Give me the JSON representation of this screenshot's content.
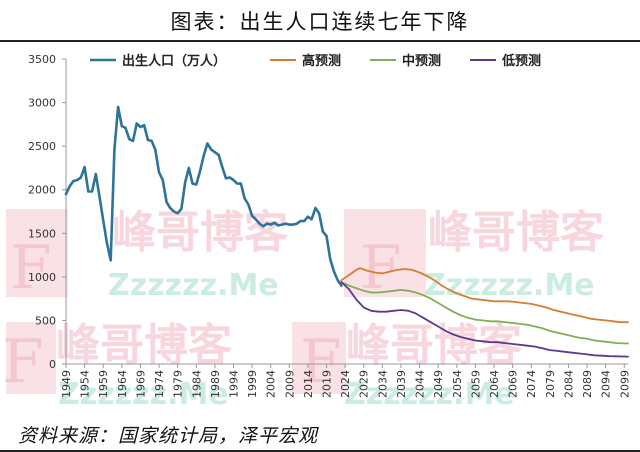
{
  "header": {
    "title": "图表：出生人口连续七年下降"
  },
  "footer": {
    "source": "资料来源：国家统计局，泽平宏观"
  },
  "watermarks": {
    "cn": "峰哥博客",
    "en": "Zzzzzz.Me",
    "letter": "F"
  },
  "colors": {
    "actual": "#2e7398",
    "high": "#d67d31",
    "mid": "#83ad55",
    "low": "#5c3a8e",
    "watermark_pink": "#f6c9d2",
    "watermark_green": "#bfe9d8"
  },
  "chart_data": {
    "type": "line",
    "title": "",
    "xlabel": "",
    "ylabel": "",
    "ylim": [
      0,
      3500
    ],
    "yticks": [
      0,
      500,
      1000,
      1500,
      2000,
      2500,
      3000,
      3500
    ],
    "xlim": [
      1949,
      2100
    ],
    "xtick_labels": [
      "1949",
      "1954",
      "1959",
      "1964",
      "1969",
      "1974",
      "1979",
      "1984",
      "1989",
      "1994",
      "1999",
      "2004",
      "2009",
      "2014",
      "2019",
      "2024",
      "2029",
      "2034",
      "2039",
      "2044",
      "2049",
      "2054",
      "2059",
      "2064",
      "2069",
      "2074",
      "2079",
      "2084",
      "2089",
      "2094",
      "2099"
    ],
    "legend": "top",
    "grid": false,
    "series": [
      {
        "name": "出生人口（万人）",
        "color_key": "actual",
        "x": [
          1949,
          1950,
          1951,
          1952,
          1953,
          1954,
          1955,
          1956,
          1957,
          1958,
          1959,
          1960,
          1961,
          1962,
          1963,
          1964,
          1965,
          1966,
          1967,
          1968,
          1969,
          1970,
          1971,
          1972,
          1973,
          1974,
          1975,
          1976,
          1977,
          1978,
          1979,
          1980,
          1981,
          1982,
          1983,
          1984,
          1985,
          1986,
          1987,
          1988,
          1989,
          1990,
          1991,
          1992,
          1993,
          1994,
          1995,
          1996,
          1997,
          1998,
          1999,
          2000,
          2001,
          2002,
          2003,
          2004,
          2005,
          2006,
          2007,
          2008,
          2009,
          2010,
          2011,
          2012,
          2013,
          2014,
          2015,
          2016,
          2017,
          2018,
          2019,
          2020,
          2021,
          2022,
          2023
        ],
        "values": [
          1950,
          2040,
          2100,
          2110,
          2140,
          2260,
          1980,
          1980,
          2180,
          1920,
          1650,
          1390,
          1190,
          2460,
          2950,
          2730,
          2710,
          2580,
          2560,
          2760,
          2720,
          2740,
          2570,
          2560,
          2460,
          2200,
          2110,
          1860,
          1790,
          1750,
          1730,
          1780,
          2080,
          2250,
          2070,
          2060,
          2210,
          2390,
          2530,
          2460,
          2430,
          2400,
          2260,
          2130,
          2140,
          2110,
          2070,
          2070,
          1900,
          1830,
          1700,
          1660,
          1610,
          1580,
          1610,
          1600,
          1620,
          1590,
          1600,
          1610,
          1600,
          1600,
          1610,
          1640,
          1640,
          1690,
          1660,
          1790,
          1730,
          1520,
          1470,
          1200,
          1060,
          960,
          900
        ]
      },
      {
        "name": "高预测",
        "color_key": "high",
        "x": [
          2023,
          2025,
          2027,
          2028,
          2030,
          2032,
          2034,
          2036,
          2038,
          2040,
          2042,
          2044,
          2046,
          2048,
          2050,
          2052,
          2054,
          2056,
          2058,
          2060,
          2062,
          2064,
          2066,
          2068,
          2070,
          2072,
          2074,
          2076,
          2078,
          2080,
          2082,
          2084,
          2086,
          2088,
          2090,
          2092,
          2094,
          2096,
          2098,
          2100
        ],
        "values": [
          960,
          1020,
          1080,
          1100,
          1070,
          1050,
          1040,
          1060,
          1080,
          1090,
          1080,
          1050,
          1010,
          960,
          900,
          850,
          810,
          780,
          750,
          740,
          730,
          720,
          720,
          720,
          710,
          700,
          690,
          670,
          650,
          620,
          600,
          580,
          560,
          540,
          520,
          510,
          500,
          490,
          480,
          480
        ]
      },
      {
        "name": "中预测",
        "color_key": "mid",
        "x": [
          2023,
          2025,
          2027,
          2029,
          2031,
          2033,
          2035,
          2037,
          2039,
          2041,
          2043,
          2045,
          2047,
          2049,
          2051,
          2053,
          2055,
          2057,
          2059,
          2061,
          2063,
          2065,
          2067,
          2069,
          2071,
          2073,
          2075,
          2077,
          2079,
          2081,
          2083,
          2085,
          2087,
          2089,
          2091,
          2093,
          2095,
          2097,
          2100
        ],
        "values": [
          940,
          900,
          870,
          840,
          820,
          820,
          830,
          840,
          850,
          840,
          820,
          790,
          750,
          700,
          650,
          600,
          560,
          530,
          510,
          500,
          490,
          490,
          480,
          470,
          460,
          450,
          430,
          410,
          380,
          360,
          340,
          320,
          300,
          290,
          270,
          260,
          250,
          240,
          235
        ]
      },
      {
        "name": "低预测",
        "color_key": "low",
        "x": [
          2023,
          2025,
          2027,
          2029,
          2031,
          2033,
          2035,
          2037,
          2039,
          2041,
          2043,
          2045,
          2047,
          2049,
          2051,
          2053,
          2055,
          2057,
          2059,
          2061,
          2063,
          2065,
          2067,
          2069,
          2071,
          2073,
          2075,
          2077,
          2079,
          2081,
          2083,
          2085,
          2087,
          2089,
          2091,
          2093,
          2095,
          2097,
          2100
        ],
        "values": [
          940,
          860,
          740,
          650,
          610,
          600,
          600,
          610,
          620,
          610,
          580,
          530,
          480,
          430,
          380,
          340,
          310,
          290,
          270,
          260,
          250,
          250,
          240,
          230,
          220,
          210,
          200,
          180,
          160,
          150,
          140,
          130,
          120,
          110,
          100,
          95,
          90,
          88,
          85
        ]
      }
    ]
  }
}
